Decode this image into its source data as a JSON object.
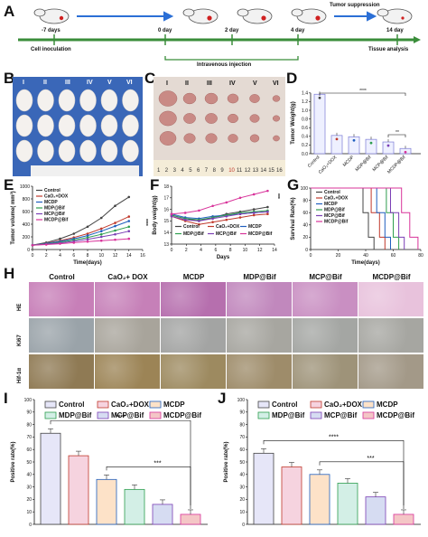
{
  "panels": {
    "A": "A",
    "B": "B",
    "C": "C",
    "D": "D",
    "E": "E",
    "F": "F",
    "G": "G",
    "H": "H",
    "I": "I",
    "J": "J"
  },
  "timeline": {
    "days": [
      "-7 days",
      "0 day",
      "2 day",
      "4 day",
      "14 day"
    ],
    "cell_inoculation": "Cell inoculation",
    "intravenous_injection": "Intravenous injection",
    "tumor_suppression": "Tumor suppression",
    "tissue_analysis": "Tissue analysis"
  },
  "roman": [
    "I",
    "II",
    "III",
    "IV",
    "V",
    "VI"
  ],
  "ruler_numbers": [
    "1",
    "2",
    "3",
    "4",
    "5",
    "6",
    "7",
    "8",
    "9",
    "10",
    "11",
    "12",
    "13",
    "14",
    "15",
    "16"
  ],
  "colors": {
    "Control": "#444444",
    "CaO2+DOX": "#c0392b",
    "MCDP": "#1f5fbf",
    "MDP@Bif": "#2e9e4e",
    "MCP@Bif": "#7b3fb5",
    "MCDP@Bif": "#d8339a"
  },
  "panel_D": {
    "ylabel": "Tumor Weight(g)",
    "ticks": [
      "0.0",
      "0.2",
      "0.4",
      "0.6",
      "0.8",
      "1.0",
      "1.2",
      "1.4"
    ],
    "sig": [
      "****",
      "**"
    ],
    "chart_data": {
      "type": "bar",
      "categories": [
        "Control",
        "CaO₂+DOX",
        "MCDP",
        "MDP@Bif",
        "MCP@Bif",
        "MCDP@Bif"
      ],
      "values": [
        1.37,
        0.42,
        0.39,
        0.33,
        0.27,
        0.12
      ],
      "ylabel": "Tumor Weight(g)",
      "ylim": [
        0,
        1.5
      ]
    }
  },
  "panel_E": {
    "ylabel": "Tumor volume( mm³)",
    "xlabel": "Time(days)",
    "yticks": [
      "0",
      "200",
      "400",
      "600",
      "800",
      "1000"
    ],
    "xticks": [
      "0",
      "2",
      "4",
      "6",
      "8",
      "10",
      "12",
      "14",
      "16"
    ],
    "sig": "****",
    "legend": [
      "Control",
      "CaO₂+DOX",
      "MCDP",
      "MDP@Bif",
      "MCP@Bif",
      "MCDP@Bif"
    ],
    "chart_data": {
      "type": "line",
      "x": [
        0,
        2,
        4,
        6,
        8,
        10,
        12,
        14
      ],
      "series": [
        {
          "name": "Control",
          "values": [
            70,
            110,
            170,
            250,
            360,
            500,
            690,
            830
          ]
        },
        {
          "name": "CaO₂+DOX",
          "values": [
            68,
            100,
            140,
            190,
            250,
            330,
            420,
            520
          ]
        },
        {
          "name": "MCDP",
          "values": [
            70,
            95,
            130,
            170,
            220,
            290,
            370,
            450
          ]
        },
        {
          "name": "MDP@Bif",
          "values": [
            68,
            90,
            115,
            150,
            190,
            240,
            300,
            360
          ]
        },
        {
          "name": "MCP@Bif",
          "values": [
            69,
            85,
            105,
            130,
            160,
            200,
            240,
            290
          ]
        },
        {
          "name": "MCDP@Bif",
          "values": [
            68,
            78,
            92,
            108,
            125,
            140,
            155,
            170
          ]
        }
      ],
      "xlabel": "Time(days)",
      "ylabel": "Tumor volume( mm³)",
      "xlim": [
        0,
        16
      ],
      "ylim": [
        0,
        1000
      ]
    }
  },
  "panel_F": {
    "ylabel": "Body weight(g)",
    "xlabel": "Days",
    "yticks": [
      "13",
      "14",
      "15",
      "16",
      "17",
      "18"
    ],
    "xticks": [
      "0",
      "2",
      "4",
      "6",
      "8",
      "10",
      "12",
      "14"
    ],
    "sig": "***",
    "legend": [
      "Control",
      "CaO₂+DOX",
      "MCDP",
      "MDP@Bif",
      "MCP@Bif",
      "MCDP@Bif"
    ],
    "chart_data": {
      "type": "line",
      "x": [
        0,
        2,
        4,
        6,
        8,
        10,
        12,
        14
      ],
      "series": [
        {
          "name": "Control",
          "values": [
            15.5,
            15.2,
            15.0,
            15.3,
            15.6,
            15.8,
            16.0,
            16.2
          ]
        },
        {
          "name": "CaO₂+DOX",
          "values": [
            15.4,
            15.0,
            14.7,
            14.9,
            15.1,
            15.3,
            15.5,
            15.6
          ]
        },
        {
          "name": "MCDP",
          "values": [
            15.6,
            15.3,
            15.2,
            15.4,
            15.5,
            15.6,
            15.7,
            15.8
          ]
        },
        {
          "name": "MDP@Bif",
          "values": [
            15.5,
            15.2,
            15.1,
            15.3,
            15.5,
            15.7,
            15.8,
            15.9
          ]
        },
        {
          "name": "MCP@Bif",
          "values": [
            15.4,
            15.1,
            15.0,
            15.2,
            15.4,
            15.6,
            15.7,
            15.8
          ]
        },
        {
          "name": "MCDP@Bif",
          "values": [
            15.6,
            15.7,
            15.9,
            16.3,
            16.6,
            17.0,
            17.3,
            17.6
          ]
        }
      ],
      "xlabel": "Days",
      "ylabel": "Body weight(g)",
      "xlim": [
        0,
        15
      ],
      "ylim": [
        13,
        18
      ]
    }
  },
  "panel_G": {
    "ylabel": "Survival Rate(%)",
    "xlabel": "Time(days)",
    "yticks": [
      "0",
      "20",
      "40",
      "60",
      "80",
      "100"
    ],
    "xticks": [
      "0",
      "20",
      "40",
      "60",
      "80"
    ],
    "legend": [
      "Control",
      "CaO₂+DOX",
      "MCDP",
      "MDP@Bif",
      "MCP@Bif",
      "MCDP@Bif"
    ],
    "chart_data": {
      "type": "line",
      "series": [
        {
          "name": "Control",
          "x": [
            0,
            33,
            38,
            42,
            46
          ],
          "values": [
            100,
            100,
            60,
            20,
            0
          ]
        },
        {
          "name": "CaO₂+DOX",
          "x": [
            0,
            38,
            44,
            50,
            54
          ],
          "values": [
            100,
            100,
            60,
            20,
            0
          ]
        },
        {
          "name": "MCDP",
          "x": [
            0,
            42,
            48,
            54,
            58
          ],
          "values": [
            100,
            100,
            60,
            20,
            0
          ]
        },
        {
          "name": "MDP@Bif",
          "x": [
            0,
            48,
            55,
            60,
            64
          ],
          "values": [
            100,
            100,
            60,
            20,
            0
          ]
        },
        {
          "name": "MCP@Bif",
          "x": [
            0,
            52,
            58,
            64,
            68
          ],
          "values": [
            100,
            100,
            60,
            20,
            0
          ]
        },
        {
          "name": "MCDP@Bif",
          "x": [
            0,
            58,
            66,
            72,
            78
          ],
          "values": [
            100,
            100,
            60,
            20,
            0
          ]
        }
      ],
      "xlabel": "Time(days)",
      "ylabel": "Survival Rate(%)",
      "xlim": [
        0,
        80
      ],
      "ylim": [
        0,
        100
      ]
    }
  },
  "panel_H": {
    "columns": [
      "Control",
      "CaO₂+ DOX",
      "MCDP",
      "MDP@Bif",
      "MCP@Bif",
      "MCDP@Bif"
    ],
    "rows": [
      "HE",
      "Ki67",
      "Hif-1α"
    ]
  },
  "panel_I": {
    "ylabel": "Positive rate(%)",
    "yticks": [
      "0",
      "10",
      "20",
      "30",
      "40",
      "50",
      "60",
      "70",
      "80",
      "90",
      "100"
    ],
    "sig": [
      "****",
      "***"
    ],
    "legend": [
      "Control",
      "CaO₂+DOX",
      "MCDP",
      "MDP@Bif",
      "MCP@Bif",
      "MCDP@Bif"
    ],
    "chart_data": {
      "type": "bar",
      "categories": [
        "Control",
        "CaO₂+DOX",
        "MCDP",
        "MDP@Bif",
        "MCP@Bif",
        "MCDP@Bif"
      ],
      "values": [
        73,
        55,
        36,
        28,
        16,
        8
      ],
      "ylabel": "Positive rate(%)",
      "ylim": [
        0,
        100
      ]
    }
  },
  "panel_J": {
    "ylabel": "Positive rate(%)",
    "yticks": [
      "0",
      "10",
      "20",
      "30",
      "40",
      "50",
      "60",
      "70",
      "80",
      "90",
      "100"
    ],
    "sig": [
      "****",
      "***"
    ],
    "legend": [
      "Control",
      "CaO₂+DOX",
      "MCDP",
      "MDP@Bif",
      "MCP@Bif",
      "MCDP@Bif"
    ],
    "chart_data": {
      "type": "bar",
      "categories": [
        "Control",
        "CaO₂+DOX",
        "MCDP",
        "MDP@Bif",
        "MCP@Bif",
        "MCDP@Bif"
      ],
      "values": [
        57,
        46,
        40,
        33,
        22,
        8
      ],
      "ylabel": "Positive rate(%)",
      "ylim": [
        0,
        100
      ]
    }
  }
}
